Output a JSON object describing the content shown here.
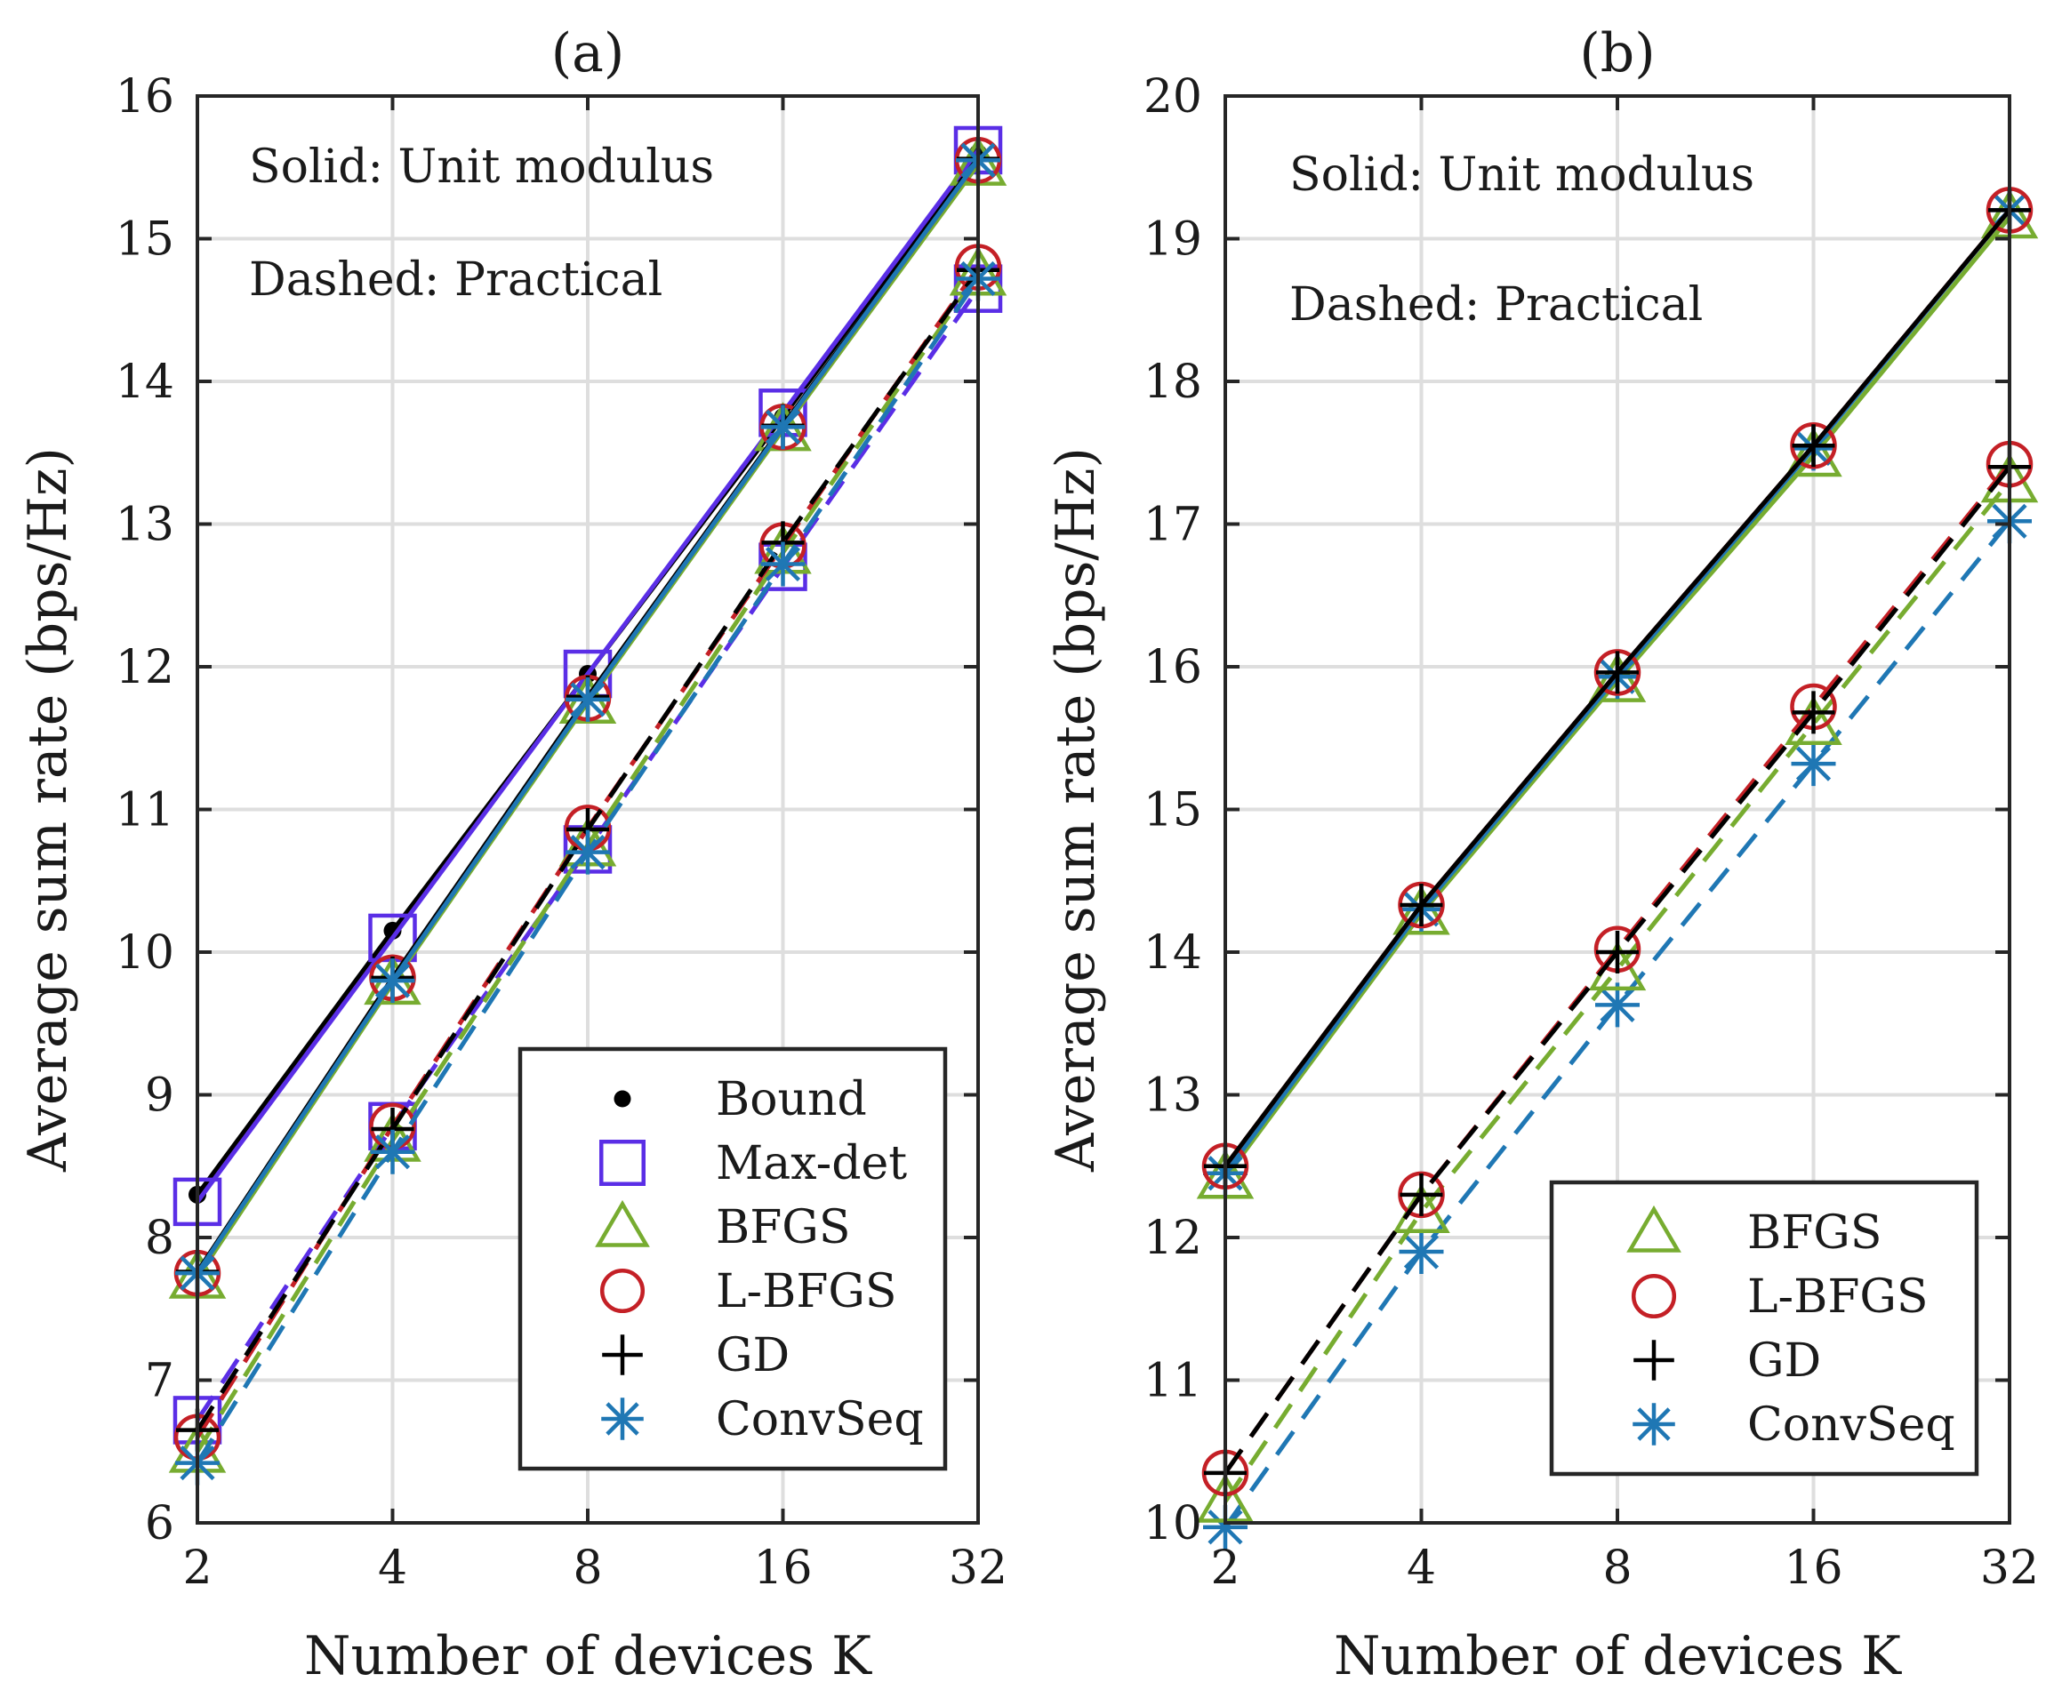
{
  "chart_data": [
    {
      "type": "line",
      "title": "(a)",
      "xlabel": "Number of devices K",
      "ylabel": "Average sum rate (bps/Hz)",
      "xscale": "log2",
      "x": [
        2,
        4,
        8,
        16,
        32
      ],
      "xticks": [
        "2",
        "4",
        "8",
        "16",
        "32"
      ],
      "ylim": [
        6,
        16
      ],
      "yticks": [
        "6",
        "7",
        "8",
        "9",
        "10",
        "11",
        "12",
        "13",
        "14",
        "15",
        "16"
      ],
      "grid": true,
      "annotations": [
        "Solid: Unit modulus",
        "Dashed: Practical"
      ],
      "legend": {
        "position": "bottom-right",
        "entries": [
          {
            "label": "Bound",
            "marker": "dot",
            "color": "#000000"
          },
          {
            "label": "Max-det",
            "marker": "square",
            "color": "#5a2ee6"
          },
          {
            "label": "BFGS",
            "marker": "triangle",
            "color": "#77ac30"
          },
          {
            "label": "L-BFGS",
            "marker": "circle",
            "color": "#c42026"
          },
          {
            "label": "GD",
            "marker": "plus",
            "color": "#000000"
          },
          {
            "label": "ConvSeq",
            "marker": "asterisk",
            "color": "#1f77b4"
          }
        ]
      },
      "series": [
        {
          "name": "Bound",
          "style": "solid",
          "color": "#000000",
          "marker": "dot",
          "values": [
            8.3,
            10.15,
            11.95,
            13.75,
            15.6
          ]
        },
        {
          "name": "Max-det",
          "style": "solid",
          "color": "#5a2ee6",
          "marker": "square",
          "values": [
            8.25,
            10.1,
            11.95,
            13.78,
            15.62
          ]
        },
        {
          "name": "BFGS",
          "style": "solid",
          "color": "#77ac30",
          "marker": "triangle",
          "values": [
            7.72,
            9.78,
            11.75,
            13.66,
            15.52
          ]
        },
        {
          "name": "L-BFGS",
          "style": "solid",
          "color": "#c42026",
          "marker": "circle",
          "values": [
            7.75,
            9.82,
            11.78,
            13.68,
            15.55
          ]
        },
        {
          "name": "GD",
          "style": "solid",
          "color": "#000000",
          "marker": "plus",
          "values": [
            7.76,
            9.82,
            11.79,
            13.69,
            15.56
          ]
        },
        {
          "name": "ConvSeq",
          "style": "solid",
          "color": "#1f77b4",
          "marker": "asterisk",
          "values": [
            7.75,
            9.8,
            11.77,
            13.68,
            15.55
          ]
        },
        {
          "name": "Max-det",
          "style": "dashed",
          "color": "#5a2ee6",
          "marker": "square",
          "values": [
            6.72,
            8.78,
            10.72,
            12.7,
            14.65
          ]
        },
        {
          "name": "BFGS",
          "style": "dashed",
          "color": "#77ac30",
          "marker": "triangle",
          "values": [
            6.5,
            8.68,
            10.75,
            12.8,
            14.75
          ]
        },
        {
          "name": "L-BFGS",
          "style": "dashed",
          "color": "#c42026",
          "marker": "circle",
          "values": [
            6.6,
            8.78,
            10.87,
            12.85,
            14.8
          ]
        },
        {
          "name": "GD",
          "style": "dashed",
          "color": "#000000",
          "marker": "plus",
          "values": [
            6.65,
            8.76,
            10.86,
            12.87,
            14.78
          ]
        },
        {
          "name": "ConvSeq",
          "style": "dashed",
          "color": "#1f77b4",
          "marker": "asterisk",
          "values": [
            6.42,
            8.6,
            10.7,
            12.72,
            14.72
          ]
        }
      ]
    },
    {
      "type": "line",
      "title": "(b)",
      "xlabel": "Number of devices K",
      "ylabel": "Average sum rate (bps/Hz)",
      "xscale": "log2",
      "x": [
        2,
        4,
        8,
        16,
        32
      ],
      "xticks": [
        "2",
        "4",
        "8",
        "16",
        "32"
      ],
      "ylim": [
        10,
        20
      ],
      "yticks": [
        "10",
        "11",
        "12",
        "13",
        "14",
        "15",
        "16",
        "17",
        "18",
        "19",
        "20"
      ],
      "grid": true,
      "annotations": [
        "Solid: Unit modulus",
        "Dashed: Practical"
      ],
      "legend": {
        "position": "bottom-right",
        "entries": [
          {
            "label": "BFGS",
            "marker": "triangle",
            "color": "#77ac30"
          },
          {
            "label": "L-BFGS",
            "marker": "circle",
            "color": "#c42026"
          },
          {
            "label": "GD",
            "marker": "plus",
            "color": "#000000"
          },
          {
            "label": "ConvSeq",
            "marker": "asterisk",
            "color": "#1f77b4"
          }
        ]
      },
      "series": [
        {
          "name": "BFGS",
          "style": "solid",
          "color": "#77ac30",
          "marker": "triangle",
          "values": [
            12.42,
            14.27,
            15.9,
            17.48,
            19.15
          ]
        },
        {
          "name": "ConvSeq",
          "style": "solid",
          "color": "#1f77b4",
          "marker": "asterisk",
          "values": [
            12.45,
            14.3,
            15.93,
            17.53,
            19.2
          ]
        },
        {
          "name": "L-BFGS",
          "style": "solid",
          "color": "#c42026",
          "marker": "circle",
          "values": [
            12.5,
            14.33,
            15.96,
            17.55,
            19.2
          ]
        },
        {
          "name": "GD",
          "style": "solid",
          "color": "#000000",
          "marker": "plus",
          "values": [
            12.5,
            14.33,
            15.96,
            17.55,
            19.2
          ]
        },
        {
          "name": "ConvSeq",
          "style": "dashed",
          "color": "#1f77b4",
          "marker": "asterisk",
          "values": [
            9.97,
            11.9,
            13.63,
            15.32,
            17.02
          ]
        },
        {
          "name": "BFGS",
          "style": "dashed",
          "color": "#77ac30",
          "marker": "triangle",
          "values": [
            10.15,
            12.18,
            13.88,
            15.6,
            17.3
          ]
        },
        {
          "name": "L-BFGS",
          "style": "dashed",
          "color": "#c42026",
          "marker": "circle",
          "values": [
            10.35,
            12.3,
            14.02,
            15.72,
            17.42
          ]
        },
        {
          "name": "GD",
          "style": "dashed",
          "color": "#000000",
          "marker": "plus",
          "values": [
            10.35,
            12.3,
            14.0,
            15.68,
            17.4
          ]
        }
      ]
    }
  ]
}
